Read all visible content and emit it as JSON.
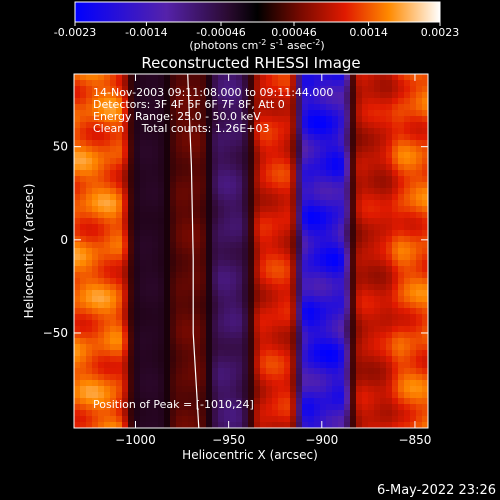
{
  "colorbar": {
    "tick_labels": [
      "-0.0023",
      "-0.0014",
      "-0.00046",
      "0.00046",
      "0.0014",
      "0.0023"
    ],
    "unit_parts": [
      "(photons cm",
      "-2",
      " s",
      "-1",
      " asec",
      "-2",
      ")"
    ],
    "range": [
      -0.0023,
      0.0023
    ]
  },
  "chart_data": {
    "type": "heatmap",
    "title": "Reconstructed RHESSI Image",
    "xlabel": "Heliocentric X (arcsec)",
    "ylabel": "Heliocentric Y (arcsec)",
    "xlim": [
      -1033,
      -843
    ],
    "ylim": [
      -101,
      89
    ],
    "x_ticks": [
      -1000,
      -950,
      -900,
      -850
    ],
    "y_ticks": [
      50,
      0,
      -50
    ],
    "x_tick_labels": [
      "−1000",
      "−950",
      "−900",
      "−850"
    ],
    "y_tick_labels": [
      "50",
      "0",
      "−50"
    ],
    "annotations": [
      "14-Nov-2003 09:11:08.000 to 09:11:44.000",
      "Detectors: 3F 4F 5F 6F 7F 8F, Att 0",
      "Energy Range: 25.0 - 50.0 keV",
      "Clean     Total counts: 1.26E+03"
    ],
    "peak_label": "Position of Peak = [-1010,24]",
    "peak_position": [
      -1010,
      24
    ],
    "bands": [
      {
        "x": -1016,
        "value": 0.0017
      },
      {
        "x": -992,
        "value": -0.0003
      },
      {
        "x": -972,
        "value": 0.0005
      },
      {
        "x": -948,
        "value": -0.0009
      },
      {
        "x": -928,
        "value": 0.0013
      },
      {
        "x": -898,
        "value": -0.0021
      },
      {
        "x": -872,
        "value": 0.0011
      },
      {
        "x": -851,
        "value": 0.0016
      }
    ],
    "limb_arc": [
      [
        -972,
        89
      ],
      [
        -970,
        40
      ],
      [
        -969,
        -10
      ],
      [
        -969,
        -50
      ],
      [
        -966,
        -101
      ]
    ]
  },
  "footer": {
    "timestamp": "6-May-2022 23:26"
  }
}
